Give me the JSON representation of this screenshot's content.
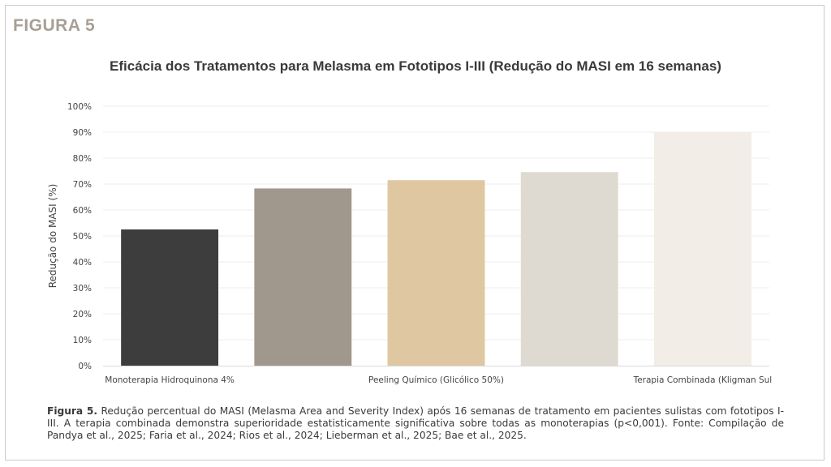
{
  "figure_label": "FIGURA 5",
  "caption": {
    "label": "Figura 5.",
    "text": " Redução percentual do MASI (Melasma Area and Severity Index) após 16 semanas de tratamento em pacientes sulistas com fototipos I-III. A terapia combinada demonstra superioridade estatisticamente significativa sobre todas as monoterapias (p<0,001). Fonte: Compilação de Pandya et al., 2025; Faria et al., 2024; Rios et al., 2024; Lieberman et al., 2025; Bae et al., 2025."
  },
  "chart_data": {
    "type": "bar",
    "title": "Eficácia dos Tratamentos para Melasma em Fototipos I-III (Redução do MASI em 16 semanas)",
    "xlabel": "",
    "ylabel": "Redução do MASI (%)",
    "ylim": [
      0,
      100
    ],
    "yticks": [
      "0%",
      "10%",
      "20%",
      "30%",
      "40%",
      "50%",
      "60%",
      "70%",
      "80%",
      "90%",
      "100%"
    ],
    "visible_x_tick_labels": [
      "Monoterapia Hidroquinona 4%",
      "Peeling Químico (Glicólico 50%)",
      "Terapia Combinada (Kligman Sul"
    ],
    "values": [
      52.5,
      68.3,
      71.5,
      74.6,
      90
    ],
    "colors": [
      "#3d3d3d",
      "#a0978d",
      "#dfc7a2",
      "#dedad1",
      "#f2eee7"
    ],
    "grid": true
  }
}
